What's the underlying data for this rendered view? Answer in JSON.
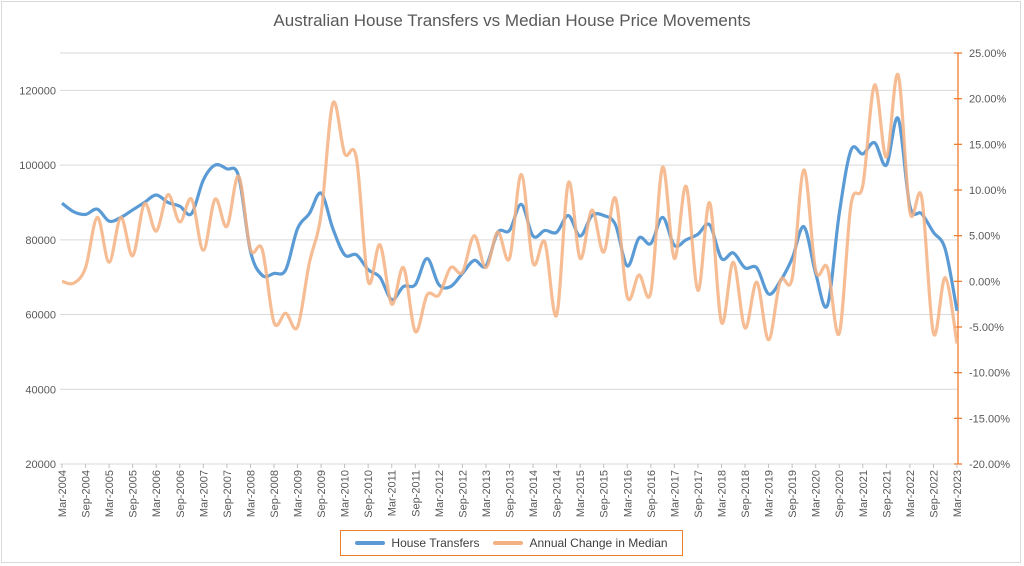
{
  "chart_data": {
    "type": "line",
    "title": "Australian House Transfers vs Median House Price Movements",
    "xlabel": "",
    "ylabel": "",
    "y_left": {
      "lim": [
        20000,
        130000
      ],
      "ticks": [
        20000,
        40000,
        60000,
        80000,
        100000,
        120000
      ],
      "tick_labels": [
        "20000",
        "40000",
        "60000",
        "80000",
        "100000",
        "120000"
      ]
    },
    "y_right": {
      "lim": [
        -20,
        25
      ],
      "ticks": [
        -20,
        -15,
        -10,
        -5,
        0,
        5,
        10,
        15,
        20,
        25
      ],
      "tick_labels": [
        "-20.00%",
        "-15.00%",
        "-10.00%",
        "-5.00%",
        "0.00%",
        "5.00%",
        "10.00%",
        "15.00%",
        "20.00%",
        "25.00%"
      ]
    },
    "x_tick_labels": [
      "Mar-2004",
      "Sep-2004",
      "Mar-2005",
      "Sep-2005",
      "Mar-2006",
      "Sep-2006",
      "Mar-2007",
      "Sep-2007",
      "Mar-2008",
      "Sep-2008",
      "Mar-2009",
      "Sep-2009",
      "Mar-2010",
      "Sep-2010",
      "Mar-2011",
      "Sep-2011",
      "Mar-2012",
      "Sep-2012",
      "Mar-2013",
      "Sep-2013",
      "Mar-2014",
      "Sep-2014",
      "Mar-2015",
      "Sep-2015",
      "Mar-2016",
      "Sep-2016",
      "Mar-2017",
      "Sep-2017",
      "Mar-2018",
      "Sep-2018",
      "Mar-2019",
      "Sep-2019",
      "Mar-2020",
      "Sep-2020",
      "Mar-2021",
      "Sep-2021",
      "Mar-2022",
      "Sep-2022",
      "Mar-2023"
    ],
    "x_frequency": "quarterly",
    "grid": true,
    "legend_position": "bottom",
    "series": [
      {
        "name": "House Transfers",
        "axis": "left",
        "color": "#5b9bd5",
        "values": [
          89800,
          87500,
          86800,
          88200,
          85000,
          86000,
          88000,
          90000,
          92000,
          90000,
          89000,
          87000,
          96000,
          100000,
          99000,
          97000,
          77000,
          70500,
          71000,
          72000,
          83000,
          87000,
          92500,
          83000,
          76000,
          76000,
          72000,
          70000,
          64000,
          67500,
          68000,
          75000,
          68000,
          67500,
          71000,
          74500,
          73000,
          82000,
          82500,
          89500,
          81000,
          82500,
          82000,
          86500,
          81000,
          86500,
          86500,
          84000,
          73000,
          80500,
          79000,
          86000,
          78500,
          80000,
          81500,
          84000,
          75000,
          76500,
          72500,
          72500,
          65500,
          69000,
          75000,
          83500,
          71000,
          62500,
          87000,
          104000,
          103000,
          106000,
          100000,
          112500,
          89000,
          87000,
          82000,
          77500,
          61000
        ]
      },
      {
        "name": "Annual Change in Median",
        "axis": "right",
        "color": "#f4b183",
        "values": [
          0.0,
          -0.2,
          1.5,
          7.0,
          2.1,
          7.0,
          2.8,
          8.5,
          5.5,
          9.5,
          6.5,
          9.0,
          3.4,
          9.0,
          6.0,
          11.5,
          3.5,
          3.5,
          -4.5,
          -3.5,
          -5.0,
          2.0,
          7.3,
          19.5,
          14.0,
          13.5,
          0.0,
          4.0,
          -2.5,
          1.5,
          -5.5,
          -1.5,
          -1.5,
          1.5,
          1.0,
          5.0,
          1.5,
          5.4,
          2.5,
          11.7,
          2.0,
          4.3,
          -3.7,
          10.8,
          2.5,
          7.8,
          3.2,
          9.1,
          -1.7,
          0.7,
          -1.2,
          12.5,
          2.5,
          10.4,
          -1.0,
          8.6,
          -4.5,
          2.1,
          -5.1,
          -0.1,
          -6.4,
          0.1,
          0.3,
          12.2,
          1.2,
          1.5,
          -5.7,
          8.4,
          10.5,
          21.5,
          13.6,
          22.6,
          7.6,
          9.2,
          -5.7,
          0.4,
          -6.8
        ]
      }
    ]
  },
  "legend": {
    "items": [
      "House Transfers",
      "Annual Change in Median"
    ]
  },
  "axis_color_right": "#ed7d31"
}
